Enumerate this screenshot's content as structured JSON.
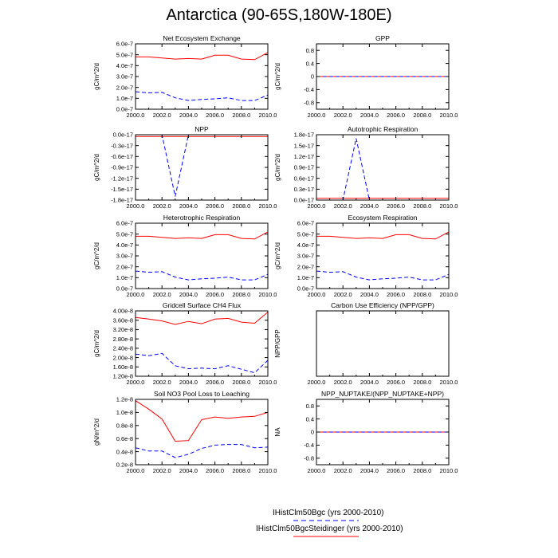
{
  "page": {
    "title": "Antarctica (90-65S,180W-180E)"
  },
  "legend": {
    "entries": [
      {
        "label": "IHistClm50Bgc (yrs 2000-2010)",
        "color": "#0000ff",
        "dash": "dashed"
      },
      {
        "label": "IHistClm50BgcSteidinger (yrs 2000-2010)",
        "color": "#ff0000",
        "dash": "solid"
      }
    ]
  },
  "chart_data": [
    {
      "type": "line",
      "title": "Net Ecosystem Exchange",
      "ylabel": "gC/m^2/d",
      "xlim": [
        2000,
        2010
      ],
      "ylim": [
        0,
        6e-07
      ],
      "xticks": [
        "2000.0",
        "2002.0",
        "2004.0",
        "2006.0",
        "2008.0",
        "2010.0"
      ],
      "yticks": [
        {
          "v": 0.0,
          "label": "0.0e-7"
        },
        {
          "v": 1e-07,
          "label": "1.0e-7"
        },
        {
          "v": 2e-07,
          "label": "2.0e-7"
        },
        {
          "v": 3e-07,
          "label": "3.0e-7"
        },
        {
          "v": 4e-07,
          "label": "4.0e-7"
        },
        {
          "v": 5e-07,
          "label": "5.0e-7"
        },
        {
          "v": 6e-07,
          "label": "6.0e-7"
        }
      ],
      "x": [
        2000,
        2001,
        2002,
        2003,
        2004,
        2005,
        2006,
        2007,
        2008,
        2009,
        2010
      ],
      "series": [
        {
          "name": "IHistClm50BgcSteidinger (yrs 2000-2010)",
          "color": "#ff0000",
          "dash": "solid",
          "values": [
            4.8e-07,
            4.8e-07,
            4.7e-07,
            4.6e-07,
            4.65e-07,
            4.6e-07,
            4.95e-07,
            4.95e-07,
            4.6e-07,
            4.55e-07,
            5.2e-07
          ]
        },
        {
          "name": "IHistClm50Bgc (yrs 2000-2010)",
          "color": "#0000ff",
          "dash": "dashed",
          "values": [
            1.6e-07,
            1.5e-07,
            1.55e-07,
            1.05e-07,
            8e-08,
            9e-08,
            9.5e-08,
            1.05e-07,
            8e-08,
            8e-08,
            1.3e-07
          ]
        }
      ]
    },
    {
      "type": "line",
      "title": "GPP",
      "ylabel": "gC/m^2/d",
      "xlim": [
        2000,
        2010
      ],
      "ylim": [
        -1.0,
        1.0
      ],
      "xticks": [
        "2000.0",
        "2002.0",
        "2004.0",
        "2006.0",
        "2008.0",
        "2010.0"
      ],
      "yticks": [
        {
          "v": -0.8,
          "label": "-0.8"
        },
        {
          "v": -0.4,
          "label": "-0.4"
        },
        {
          "v": 0,
          "label": "0"
        },
        {
          "v": 0.4,
          "label": "0.4"
        },
        {
          "v": 0.8,
          "label": "0.8"
        }
      ],
      "x": [
        2000,
        2001,
        2002,
        2003,
        2004,
        2005,
        2006,
        2007,
        2008,
        2009,
        2010
      ],
      "series": [
        {
          "name": "IHistClm50BgcSteidinger (yrs 2000-2010)",
          "color": "#ff0000",
          "dash": "solid",
          "values": [
            0,
            0,
            0,
            0,
            0,
            0,
            0,
            0,
            0,
            0,
            0
          ]
        },
        {
          "name": "IHistClm50Bgc (yrs 2000-2010)",
          "color": "#0000ff",
          "dash": "dashed",
          "values": [
            0,
            0,
            0,
            0,
            0,
            0,
            0,
            0,
            0,
            0,
            0
          ]
        }
      ]
    },
    {
      "type": "line",
      "title": "NPP",
      "ylabel": "gC/m^2/d",
      "xlim": [
        2000,
        2010
      ],
      "ylim": [
        -1.8e-17,
        0.0
      ],
      "xticks": [
        "2000.0",
        "2002.0",
        "2004.0",
        "2006.0",
        "2008.0",
        "2010.0"
      ],
      "yticks": [
        {
          "v": 0.0,
          "label": "0.0e-17"
        },
        {
          "v": -3e-18,
          "label": "-0.3e-17"
        },
        {
          "v": -6e-18,
          "label": "-0.6e-17"
        },
        {
          "v": -9e-18,
          "label": "-0.9e-17"
        },
        {
          "v": -1.2e-17,
          "label": "-1.2e-17"
        },
        {
          "v": -1.5e-17,
          "label": "-1.5e-17"
        },
        {
          "v": -1.8e-17,
          "label": "-1.8e-17"
        }
      ],
      "x": [
        2000,
        2001,
        2002,
        2003,
        2004,
        2005,
        2006,
        2007,
        2008,
        2009,
        2010
      ],
      "series": [
        {
          "name": "IHistClm50BgcSteidinger (yrs 2000-2010)",
          "color": "#ff0000",
          "dash": "solid",
          "values": [
            -5e-19,
            -5e-19,
            -5e-19,
            -5e-19,
            -5e-19,
            -5e-19,
            -5e-19,
            -5e-19,
            -5e-19,
            -5e-19,
            -5e-19
          ]
        },
        {
          "name": "IHistClm50Bgc (yrs 2000-2010)",
          "color": "#0000ff",
          "dash": "dashed",
          "values": [
            0,
            0,
            0,
            -1.7e-17,
            0,
            0,
            0,
            0,
            0,
            0,
            0
          ]
        }
      ]
    },
    {
      "type": "line",
      "title": "Autotrophic Respiration",
      "ylabel": "gC/m^2/d",
      "xlim": [
        2000,
        2010
      ],
      "ylim": [
        0.0,
        1.8e-17
      ],
      "xticks": [
        "2000.0",
        "2002.0",
        "2004.0",
        "2006.0",
        "2008.0",
        "2010.0"
      ],
      "yticks": [
        {
          "v": 0.0,
          "label": "0.0e-17"
        },
        {
          "v": 3e-18,
          "label": "0.3e-17"
        },
        {
          "v": 6e-18,
          "label": "0.6e-17"
        },
        {
          "v": 9e-18,
          "label": "0.9e-17"
        },
        {
          "v": 1.2e-17,
          "label": "1.2e-17"
        },
        {
          "v": 1.5e-17,
          "label": "1.5e-17"
        },
        {
          "v": 1.8e-17,
          "label": "1.8e-17"
        }
      ],
      "x": [
        2000,
        2001,
        2002,
        2003,
        2004,
        2005,
        2006,
        2007,
        2008,
        2009,
        2010
      ],
      "series": [
        {
          "name": "IHistClm50BgcSteidinger (yrs 2000-2010)",
          "color": "#ff0000",
          "dash": "solid",
          "values": [
            5e-19,
            5e-19,
            5e-19,
            5e-19,
            5e-19,
            5e-19,
            5e-19,
            5e-19,
            5e-19,
            5e-19,
            5e-19
          ]
        },
        {
          "name": "IHistClm50Bgc (yrs 2000-2010)",
          "color": "#0000ff",
          "dash": "dashed",
          "values": [
            0,
            0,
            0,
            1.7e-17,
            0,
            0,
            0,
            0,
            0,
            0,
            0
          ]
        }
      ]
    },
    {
      "type": "line",
      "title": "Heterotrophic Respiration",
      "ylabel": "gC/m^2/d",
      "xlim": [
        2000,
        2010
      ],
      "ylim": [
        0,
        6e-07
      ],
      "xticks": [
        "2000.0",
        "2002.0",
        "2004.0",
        "2006.0",
        "2008.0",
        "2010.0"
      ],
      "yticks": [
        {
          "v": 0.0,
          "label": "0.0e-7"
        },
        {
          "v": 1e-07,
          "label": "1.0e-7"
        },
        {
          "v": 2e-07,
          "label": "2.0e-7"
        },
        {
          "v": 3e-07,
          "label": "3.0e-7"
        },
        {
          "v": 4e-07,
          "label": "4.0e-7"
        },
        {
          "v": 5e-07,
          "label": "5.0e-7"
        },
        {
          "v": 6e-07,
          "label": "6.0e-7"
        }
      ],
      "x": [
        2000,
        2001,
        2002,
        2003,
        2004,
        2005,
        2006,
        2007,
        2008,
        2009,
        2010
      ],
      "series": [
        {
          "name": "IHistClm50BgcSteidinger (yrs 2000-2010)",
          "color": "#ff0000",
          "dash": "solid",
          "values": [
            4.8e-07,
            4.8e-07,
            4.7e-07,
            4.6e-07,
            4.65e-07,
            4.6e-07,
            4.95e-07,
            4.95e-07,
            4.6e-07,
            4.55e-07,
            5.2e-07
          ]
        },
        {
          "name": "IHistClm50Bgc (yrs 2000-2010)",
          "color": "#0000ff",
          "dash": "dashed",
          "values": [
            1.6e-07,
            1.5e-07,
            1.55e-07,
            1.05e-07,
            8e-08,
            9e-08,
            9.5e-08,
            1.05e-07,
            8e-08,
            8e-08,
            1.3e-07
          ]
        }
      ]
    },
    {
      "type": "line",
      "title": "Ecosystem Respiration",
      "ylabel": "gC/m^2/d",
      "xlim": [
        2000,
        2010
      ],
      "ylim": [
        0,
        6e-07
      ],
      "xticks": [
        "2000.0",
        "2002.0",
        "2004.0",
        "2006.0",
        "2008.0",
        "2010.0"
      ],
      "yticks": [
        {
          "v": 0.0,
          "label": "0.0e-7"
        },
        {
          "v": 1e-07,
          "label": "1.0e-7"
        },
        {
          "v": 2e-07,
          "label": "2.0e-7"
        },
        {
          "v": 3e-07,
          "label": "3.0e-7"
        },
        {
          "v": 4e-07,
          "label": "4.0e-7"
        },
        {
          "v": 5e-07,
          "label": "5.0e-7"
        },
        {
          "v": 6e-07,
          "label": "6.0e-7"
        }
      ],
      "x": [
        2000,
        2001,
        2002,
        2003,
        2004,
        2005,
        2006,
        2007,
        2008,
        2009,
        2010
      ],
      "series": [
        {
          "name": "IHistClm50BgcSteidinger (yrs 2000-2010)",
          "color": "#ff0000",
          "dash": "solid",
          "values": [
            4.8e-07,
            4.8e-07,
            4.7e-07,
            4.6e-07,
            4.65e-07,
            4.6e-07,
            4.95e-07,
            4.95e-07,
            4.6e-07,
            4.55e-07,
            5.2e-07
          ]
        },
        {
          "name": "IHistClm50Bgc (yrs 2000-2010)",
          "color": "#0000ff",
          "dash": "dashed",
          "values": [
            1.6e-07,
            1.5e-07,
            1.55e-07,
            1.05e-07,
            8e-08,
            9e-08,
            9.5e-08,
            1.05e-07,
            8e-08,
            8e-08,
            1.3e-07
          ]
        }
      ]
    },
    {
      "type": "line",
      "title": "Gridcell Surface CH4 Flux",
      "ylabel": "gC/m^2/d",
      "xlim": [
        2000,
        2010
      ],
      "ylim": [
        1.2e-08,
        4e-08
      ],
      "xticks": [
        "2000.0",
        "2002.0",
        "2004.0",
        "2006.0",
        "2008.0",
        "2010.0"
      ],
      "yticks": [
        {
          "v": 1.2e-08,
          "label": "1.20e-8"
        },
        {
          "v": 1.6e-08,
          "label": "1.60e-8"
        },
        {
          "v": 2e-08,
          "label": "2.00e-8"
        },
        {
          "v": 2.4e-08,
          "label": "2.40e-8"
        },
        {
          "v": 2.8e-08,
          "label": "2.80e-8"
        },
        {
          "v": 3.2e-08,
          "label": "3.20e-8"
        },
        {
          "v": 3.6e-08,
          "label": "3.60e-8"
        },
        {
          "v": 4e-08,
          "label": "4.00e-8"
        }
      ],
      "x": [
        2000,
        2001,
        2002,
        2003,
        2004,
        2005,
        2006,
        2007,
        2008,
        2009,
        2010
      ],
      "series": [
        {
          "name": "IHistClm50BgcSteidinger (yrs 2000-2010)",
          "color": "#ff0000",
          "dash": "solid",
          "values": [
            3.72e-08,
            3.65e-08,
            3.57e-08,
            3.42e-08,
            3.55e-08,
            3.45e-08,
            3.65e-08,
            3.68e-08,
            3.52e-08,
            3.47e-08,
            3.95e-08
          ]
        },
        {
          "name": "IHistClm50Bgc (yrs 2000-2010)",
          "color": "#0000ff",
          "dash": "dashed",
          "values": [
            2.15e-08,
            2.08e-08,
            2.18e-08,
            1.65e-08,
            1.52e-08,
            1.55e-08,
            1.52e-08,
            1.65e-08,
            1.5e-08,
            1.35e-08,
            1.88e-08
          ]
        }
      ]
    },
    {
      "type": "line",
      "title": "Carbon Use Efficiency (NPP/GPP)",
      "ylabel": "NPP/GPP",
      "xlim": [
        2000,
        2010
      ],
      "ylim": [
        0,
        1
      ],
      "xticks": [
        "2000.0",
        "2002.0",
        "2004.0",
        "2006.0",
        "2008.0",
        "2010.0"
      ],
      "yticks": [],
      "x": [],
      "series": []
    },
    {
      "type": "line",
      "title": "Soil NO3 Pool Loss to Leaching",
      "ylabel": "gN/m^2/d",
      "xlim": [
        2000,
        2010
      ],
      "ylim": [
        2e-09,
        1.2e-08
      ],
      "xticks": [
        "2000.0",
        "2002.0",
        "2004.0",
        "2006.0",
        "2008.0",
        "2010.0"
      ],
      "yticks": [
        {
          "v": 2e-09,
          "label": "0.2e-8"
        },
        {
          "v": 4e-09,
          "label": "0.4e-8"
        },
        {
          "v": 6e-09,
          "label": "0.6e-8"
        },
        {
          "v": 8e-09,
          "label": "0.8e-8"
        },
        {
          "v": 1e-08,
          "label": "1.0e-8"
        },
        {
          "v": 1.2e-08,
          "label": "1.2e-8"
        }
      ],
      "x": [
        2000,
        2001,
        2002,
        2003,
        2004,
        2005,
        2006,
        2007,
        2008,
        2009,
        2010
      ],
      "series": [
        {
          "name": "IHistClm50BgcSteidinger (yrs 2000-2010)",
          "color": "#ff0000",
          "dash": "solid",
          "values": [
            1.18e-08,
            1.05e-08,
            9e-09,
            5.6e-09,
            5.7e-09,
            8.9e-09,
            9.3e-09,
            9.1e-09,
            9.3e-09,
            9.4e-09,
            1e-08
          ]
        },
        {
          "name": "IHistClm50Bgc (yrs 2000-2010)",
          "color": "#0000ff",
          "dash": "dashed",
          "values": [
            4.6e-09,
            4.1e-09,
            4.1e-09,
            3.1e-09,
            3.6e-09,
            4.5e-09,
            5e-09,
            5.1e-09,
            5.1e-09,
            4.6e-09,
            4.7e-09
          ]
        }
      ]
    },
    {
      "type": "line",
      "title": "NPP_NUPTAKE/(NPP_NUPTAKE+NPP)",
      "ylabel": "NA",
      "xlim": [
        2000,
        2010
      ],
      "ylim": [
        -1.0,
        1.0
      ],
      "xticks": [
        "2000.0",
        "2002.0",
        "2004.0",
        "2006.0",
        "2008.0",
        "2010.0"
      ],
      "yticks": [
        {
          "v": -0.8,
          "label": "-0.8"
        },
        {
          "v": -0.4,
          "label": "-0.4"
        },
        {
          "v": 0,
          "label": "0"
        },
        {
          "v": 0.4,
          "label": "0.4"
        },
        {
          "v": 0.8,
          "label": "0.8"
        }
      ],
      "x": [
        2000,
        2001,
        2002,
        2003,
        2004,
        2005,
        2006,
        2007,
        2008,
        2009,
        2010
      ],
      "series": [
        {
          "name": "IHistClm50BgcSteidinger (yrs 2000-2010)",
          "color": "#ff0000",
          "dash": "solid",
          "values": [
            0,
            0,
            0,
            0,
            0,
            0,
            0,
            0,
            0,
            0,
            0
          ]
        },
        {
          "name": "IHistClm50Bgc (yrs 2000-2010)",
          "color": "#0000ff",
          "dash": "dashed",
          "values": [
            0,
            0,
            0,
            0,
            0,
            0,
            0,
            0,
            0,
            0,
            0
          ]
        }
      ]
    }
  ]
}
